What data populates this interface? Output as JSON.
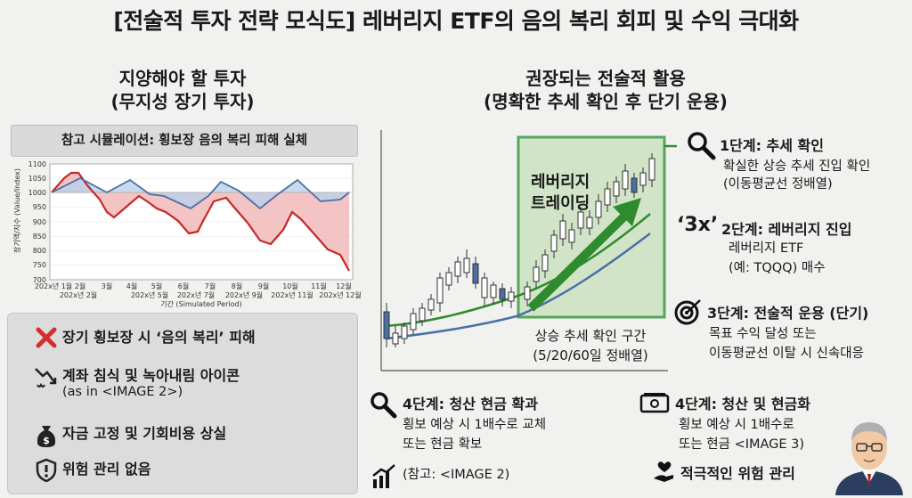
{
  "title": "[전술적 투자 전략 모식도] 레버리지 ETF의 음의 복리 회피 및 수익 극대화",
  "left": {
    "heading1": "지양해야 할 투자",
    "heading2": "(무지성 장기 투자)",
    "sim_title": "참고 시뮬레이션: 횡보장 음의 복리 피해 실체",
    "chart": {
      "ylabel": "장기액/지수 (Value/Index)",
      "xlabel": "기간 (Simulated Period)",
      "yticks": [
        "1100",
        "1050",
        "1000",
        "950",
        "900",
        "850",
        "800",
        "750",
        "700"
      ],
      "xticks_top": [
        "202x년 1월",
        "2월",
        "3월",
        "4월",
        "5월",
        "6월",
        "7월",
        "8월",
        "9월",
        "10월",
        "11월",
        "12월"
      ],
      "xticks_bottom": [
        "202x년 1월",
        "202x년 2월",
        "202x년 5월",
        "202x년 7월",
        "202x년 9월",
        "202x년 11월",
        "202x년 12월"
      ]
    },
    "items": [
      {
        "icon": "x-icon",
        "text": "장기 횡보장 시 ‘음의 복리’ 피해"
      },
      {
        "icon": "melting-account-icon",
        "text": "계좌 침식 및 녹아내림 아이콘",
        "sub": "(as in <IMAGE 2>)"
      },
      {
        "icon": "money-bag-icon",
        "text": "자금 고정 및 기회비용 상실"
      },
      {
        "icon": "shield-alert-icon",
        "text": "위험 관리 없음"
      }
    ]
  },
  "right": {
    "heading1": "권장되는 전술적 활용",
    "heading2": "(명확한 추세 확인 후 단기 운용)",
    "box_label1": "레버리지",
    "box_label2": "트레이딩",
    "trend_label1": "상승 추세 확인 구간",
    "trend_label2": "(5/20/60일 정배열)",
    "step1": {
      "title": "1단계: 추세 확인",
      "l1": "확실한 상승 추세 진입 확인",
      "l2": "(이동평균선 정배열)"
    },
    "step2": {
      "badge": "‘3x’",
      "title": "2단계: 레버리지 진입",
      "l1": "레버리지 ETF",
      "l2": "(예: TQQQ) 매수"
    },
    "step3": {
      "title": "3단계: 전술적 운용 (단기)",
      "l1": "목표 수익 달성 또는",
      "l2": "이동평균선 이탈 시 신속대응"
    },
    "step4a": {
      "title": "4단계: 청산 현금 확과",
      "l1": "횡보 예상 시 1배수로 교체",
      "l2": "또는 현금 확보",
      "ref": "(참고: <IMAGE 2)"
    },
    "step4b": {
      "title": "4단계: 청산 및 현금화",
      "l1": "횡보 예상 시 1배수로",
      "l2": "또는 현금 <IMAGE 3)",
      "extra": "적극적인 위험 관리"
    }
  },
  "colors": {
    "green": "#2e8b2e",
    "blue": "#4a6fa5",
    "red": "#c62828",
    "redfill": "#f2b8b8",
    "bluefill": "#bcd0ea"
  }
}
